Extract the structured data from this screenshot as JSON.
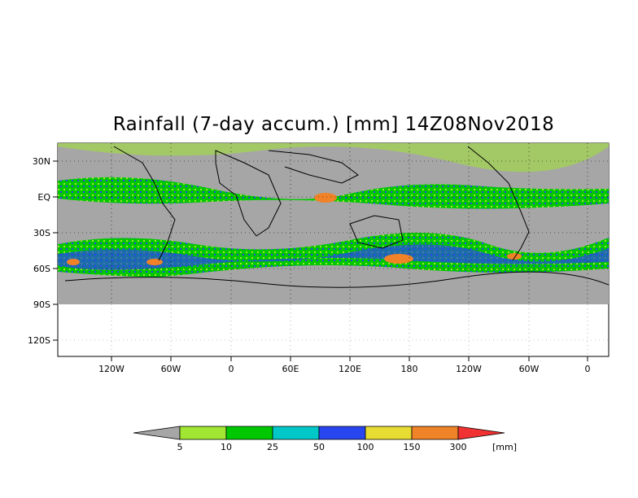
{
  "title": "Rainfall (7-day accum.) [mm] 14Z08Nov2018",
  "axes": {
    "y_ticks": [
      "30N",
      "EQ",
      "30S",
      "60S",
      "90S",
      "120S"
    ],
    "x_ticks": [
      "120W",
      "60W",
      "0",
      "60E",
      "120E",
      "180",
      "120W",
      "60W",
      "0"
    ]
  },
  "colorbar": {
    "labels": [
      "5",
      "10",
      "25",
      "50",
      "100",
      "150",
      "300"
    ],
    "unit": "[mm]",
    "colors": {
      "below": "#a6a6a6",
      "bins": [
        "#a0e632",
        "#00c800",
        "#00c8c8",
        "#2846f0",
        "#e6dc32",
        "#f08228"
      ],
      "above": "#f03232"
    }
  },
  "colors": {
    "land_ocean_dry": "#a6a6a6",
    "light_rain": "#a0e632",
    "moderate_rain": "#00c800",
    "heavy_rain": "#2846f0",
    "extreme_rain": "#f08228"
  }
}
